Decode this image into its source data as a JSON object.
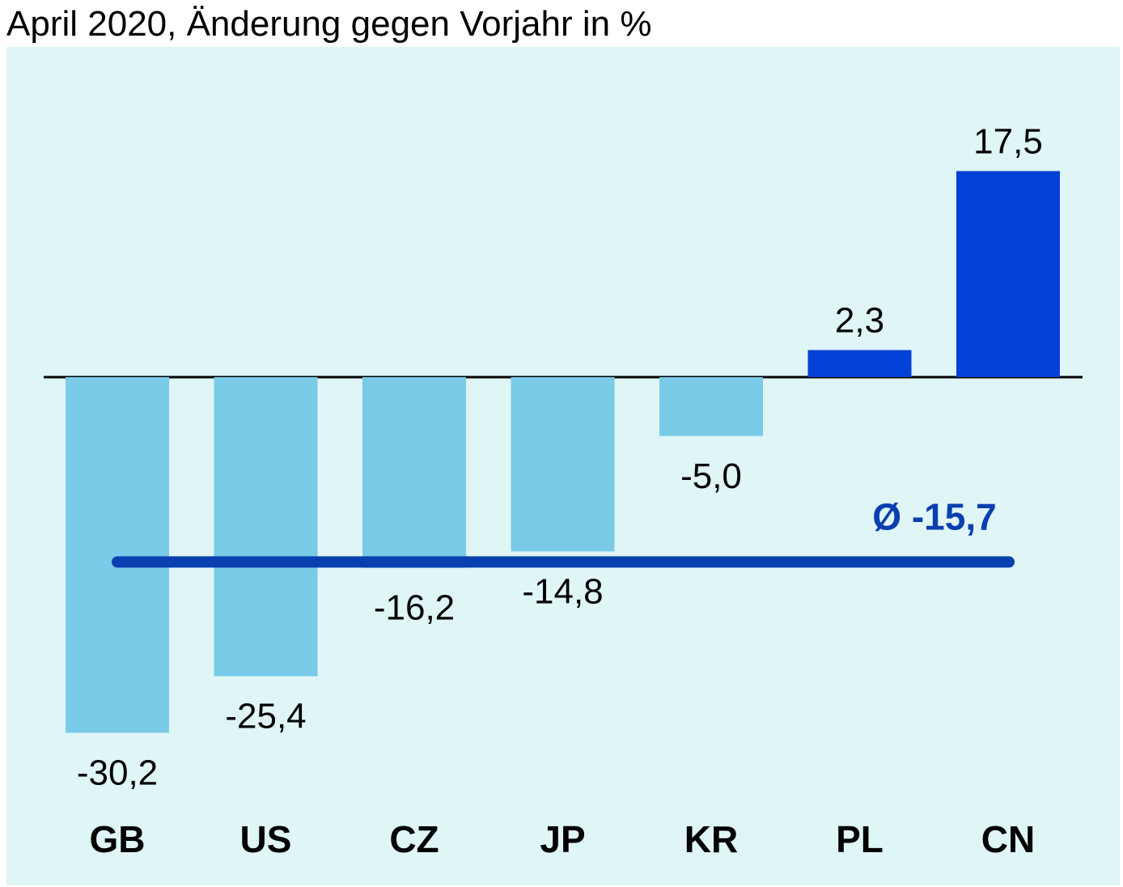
{
  "chart_data": {
    "type": "bar",
    "title": "April 2020, Änderung gegen Vorjahr in %",
    "categories": [
      "GB",
      "US",
      "CZ",
      "JP",
      "KR",
      "PL",
      "CN"
    ],
    "values": [
      -30.2,
      -25.4,
      -16.2,
      -14.8,
      -5.0,
      2.3,
      17.5
    ],
    "value_labels": [
      "-30,2",
      "-25,4",
      "-16,2",
      "-14,8",
      "-5,0",
      "2,3",
      "17,5"
    ],
    "average": {
      "value": -15.7,
      "label": "Ø -15,7"
    },
    "colors": {
      "negative": "#79cbe8",
      "positive": "#0441d6",
      "average_line": "#0a3fb0",
      "background": "#dff5f6"
    },
    "grid": false,
    "legend": "none"
  }
}
